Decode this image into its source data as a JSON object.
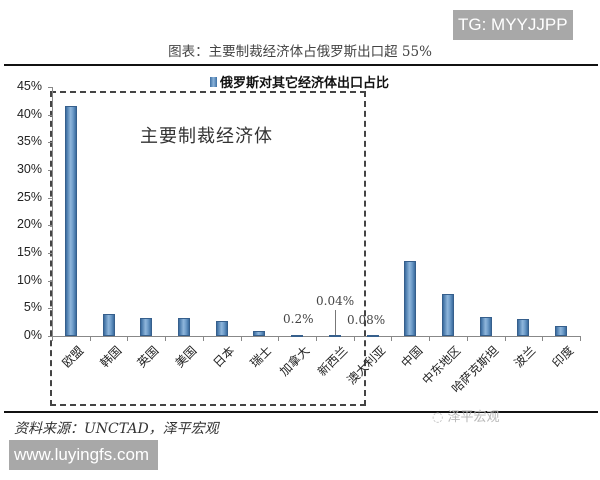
{
  "watermarks": {
    "top_right": "TG: MYYJJPP",
    "bottom_left": "www.luyingfs.com",
    "wechat": "泽平宏观"
  },
  "chart_data": {
    "type": "bar",
    "title": "图表：主要制裁经济体占俄罗斯出口超 55%",
    "legend": [
      "俄罗斯对其它经济体出口占比"
    ],
    "legend_position": "top",
    "xlabel": "",
    "ylabel": "",
    "ylim": [
      0,
      45
    ],
    "grid": false,
    "y_ticks": [
      "0%",
      "5%",
      "10%",
      "15%",
      "20%",
      "25%",
      "30%",
      "35%",
      "40%",
      "45%"
    ],
    "categories": [
      "欧盟",
      "韩国",
      "英国",
      "美国",
      "日本",
      "瑞士",
      "加拿大",
      "新西兰",
      "澳大利亚",
      "中国",
      "中东地区",
      "哈萨克斯坦",
      "波兰",
      "印度"
    ],
    "series": [
      {
        "name": "俄罗斯对其它经济体出口占比",
        "values": [
          41.6,
          4.0,
          3.2,
          3.2,
          2.7,
          0.9,
          0.2,
          0.04,
          0.08,
          13.5,
          7.6,
          3.4,
          3.1,
          1.8
        ],
        "color": "#4f81bd"
      }
    ],
    "annotations": [
      {
        "text": "0.2%",
        "category": "加拿大"
      },
      {
        "text": "0.04%",
        "category": "新西兰"
      },
      {
        "text": "0.08%",
        "category": "澳大利亚"
      },
      {
        "text": "主要制裁经济体",
        "type": "dashed-box",
        "covers": [
          "欧盟",
          "韩国",
          "英国",
          "美国",
          "日本",
          "瑞士",
          "加拿大",
          "新西兰",
          "澳大利亚"
        ]
      }
    ],
    "source": "资料来源：UNCTAD，泽平宏观"
  }
}
